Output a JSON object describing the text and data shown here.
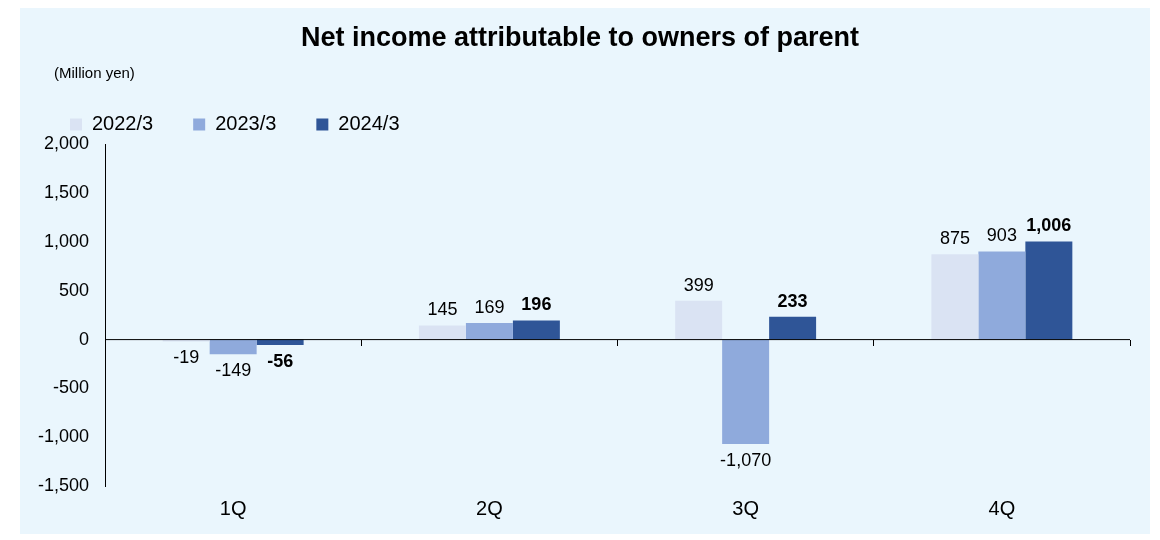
{
  "chart_data": {
    "type": "bar",
    "title": "Net income attributable to owners of parent",
    "ylabel": "(Million yen)",
    "categories": [
      "1Q",
      "2Q",
      "3Q",
      "4Q"
    ],
    "series": [
      {
        "name": "2022/3",
        "color": "#dae3f3",
        "values": [
          -19,
          145,
          399,
          875
        ],
        "value_labels": [
          "-19",
          "145",
          "399",
          "875"
        ]
      },
      {
        "name": "2023/3",
        "color": "#8faadc",
        "values": [
          -149,
          169,
          -1070,
          903
        ],
        "value_labels": [
          "-149",
          "169",
          "-1,070",
          "903"
        ]
      },
      {
        "name": "2024/3",
        "color": "#2f5597",
        "values": [
          -56,
          196,
          233,
          1006
        ],
        "value_labels": [
          "-56",
          "196",
          "233",
          "1,006"
        ]
      }
    ],
    "ylim": [
      -1500,
      2000
    ],
    "yticks": [
      {
        "value": -1500,
        "label": "-1,500"
      },
      {
        "value": -1000,
        "label": "-1,000"
      },
      {
        "value": -500,
        "label": "-500"
      },
      0,
      500,
      {
        "value": 1000,
        "label": "1,000"
      },
      {
        "value": 1500,
        "label": "1,500"
      },
      {
        "value": 2000,
        "label": "2,000"
      }
    ],
    "ref_lines": [
      {
        "axis": "y",
        "value": 0,
        "color": "#000000"
      }
    ],
    "legend": "top",
    "grid": false
  }
}
